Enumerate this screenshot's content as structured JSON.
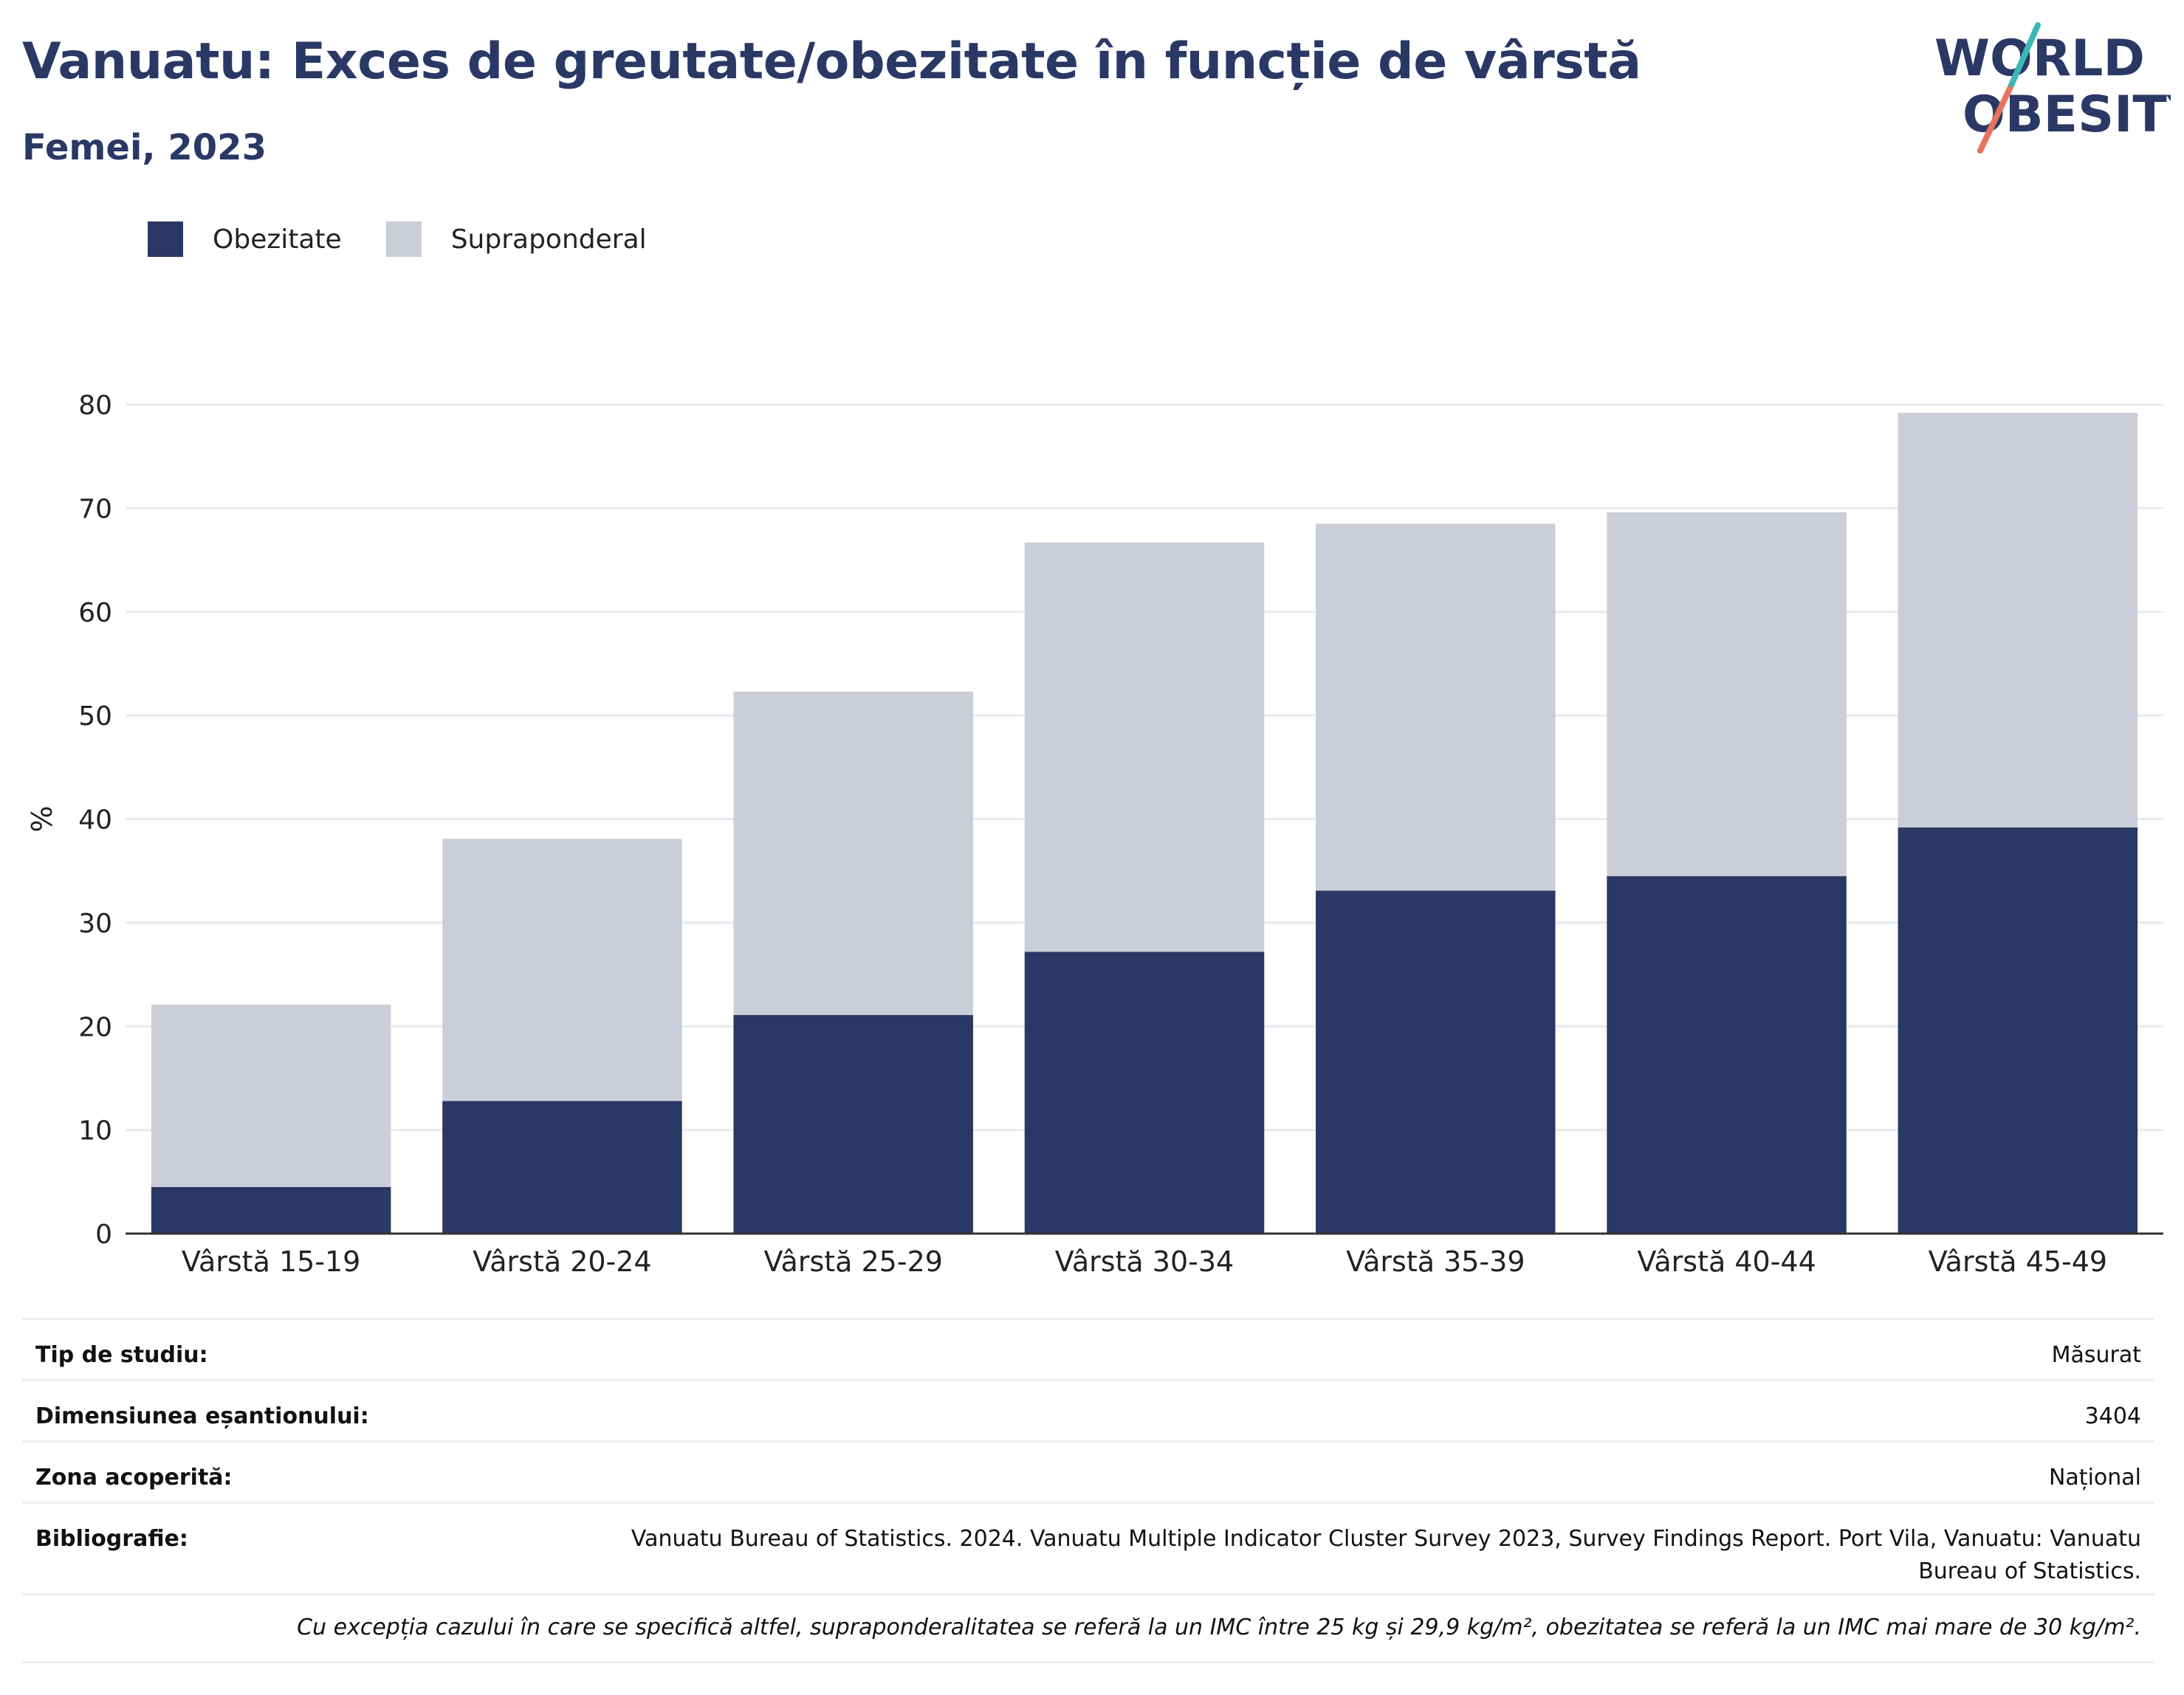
{
  "header": {
    "title": "Vanuatu: Exces de greutate/obezitate în funcție de vârstă",
    "subtitle": "Femei, 2023"
  },
  "logo": {
    "line1": "WORLD",
    "line2": "OBESITY"
  },
  "colors": {
    "obesity": "#2a3865",
    "overweight": "#cbcdd8",
    "text_dark": "#2a3865",
    "grid": "#e9eaef",
    "logo_teal": "#3bb8b4",
    "logo_coral": "#e8735f"
  },
  "chart_data": {
    "type": "bar",
    "stacked": true,
    "title": "Vanuatu: Exces de greutate/obezitate în funcție de vârstă",
    "subtitle": "Femei, 2023",
    "xlabel": "",
    "ylabel": "%",
    "ylim": [
      0,
      80
    ],
    "yticks": [
      0,
      10,
      20,
      30,
      40,
      50,
      60,
      70,
      80
    ],
    "grid": true,
    "legend_position": "top-left",
    "categories": [
      "Vârstă 15-19",
      "Vârstă 20-24",
      "Vârstă 25-29",
      "Vârstă 30-34",
      "Vârstă 35-39",
      "Vârstă 40-44",
      "Vârstă 45-49"
    ],
    "series": [
      {
        "name": "Obezitate",
        "values": [
          4.5,
          12.8,
          21.1,
          27.2,
          33.1,
          34.5,
          39.2
        ]
      },
      {
        "name": "Supraponderal",
        "values": [
          17.6,
          25.3,
          31.2,
          39.5,
          35.4,
          35.1,
          40.0
        ]
      }
    ]
  },
  "info": {
    "rows": [
      {
        "label": "Tip de studiu:",
        "value": "Măsurat"
      },
      {
        "label": "Dimensiunea eșantionului:",
        "value": "3404"
      },
      {
        "label": "Zona acoperită:",
        "value": "Național"
      },
      {
        "label": "Bibliografie:",
        "value": "Vanuatu Bureau of Statistics. 2024. Vanuatu Multiple Indicator Cluster Survey 2023, Survey Findings Report. Port Vila, Vanuatu: Vanuatu Bureau of Statistics."
      }
    ],
    "note": "Cu excepția cazului în care se specifică altfel, supraponderalitatea se referă la un IMC între 25 kg și 29,9 kg/m², obezitatea se referă la un IMC mai mare de 30 kg/m²."
  }
}
